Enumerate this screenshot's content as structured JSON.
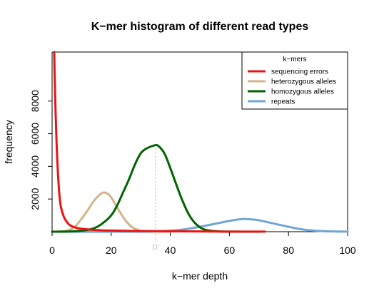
{
  "chart_data": {
    "type": "line",
    "title": "K−mer histogram of different read types",
    "xlabel": "k−mer depth",
    "ylabel": "frequency",
    "xlim": [
      0,
      100
    ],
    "ylim": [
      0,
      11000
    ],
    "x_ticks": [
      0,
      20,
      40,
      60,
      80,
      100
    ],
    "x_tick_labels": [
      "0",
      "20",
      "40",
      "60",
      "80",
      "100"
    ],
    "y_ticks": [
      2000,
      4000,
      6000,
      8000
    ],
    "y_tick_labels": [
      "2000",
      "4000",
      "6000",
      "8000"
    ],
    "grid": false,
    "legend": {
      "title": "k−mers",
      "position": "top-right"
    },
    "annotation": {
      "label": "D'",
      "x": 35,
      "line_top_y": 5300,
      "color": "#bbbbbb"
    },
    "series": [
      {
        "name": "sequencing errors",
        "color": "#ee1111",
        "x": [
          0.7,
          1,
          1.5,
          2,
          2.5,
          3,
          4,
          5,
          6,
          8,
          10,
          15,
          20,
          30,
          40,
          50,
          60,
          72
        ],
        "y": [
          11000,
          8500,
          5500,
          3500,
          2200,
          1500,
          900,
          600,
          400,
          250,
          180,
          100,
          70,
          40,
          25,
          15,
          8,
          5
        ]
      },
      {
        "name": "heterozygous alleles",
        "color": "#d2b48c",
        "x": [
          0,
          4,
          6,
          8,
          10,
          12,
          14,
          16,
          17.5,
          19,
          20,
          22,
          24,
          26,
          28,
          30,
          33,
          36,
          40
        ],
        "y": [
          0,
          30,
          120,
          350,
          800,
          1300,
          1850,
          2250,
          2400,
          2300,
          2100,
          1500,
          900,
          450,
          180,
          60,
          20,
          5,
          0
        ]
      },
      {
        "name": "homozygous alleles",
        "color": "#006400",
        "x": [
          0,
          5,
          10,
          14,
          17,
          20,
          22,
          24,
          26,
          28,
          30,
          32,
          34,
          35,
          36,
          38,
          40,
          42,
          44,
          46,
          48,
          50,
          52,
          56,
          60,
          70
        ],
        "y": [
          0,
          10,
          60,
          200,
          500,
          1000,
          1600,
          2400,
          3200,
          4100,
          4800,
          5100,
          5250,
          5300,
          5250,
          4800,
          3900,
          2900,
          1950,
          1150,
          600,
          270,
          110,
          20,
          5,
          0
        ]
      },
      {
        "name": "repeats",
        "color": "#6fa6d6",
        "x": [
          0,
          30,
          40,
          45,
          50,
          55,
          60,
          63,
          65,
          67,
          70,
          75,
          80,
          85,
          90,
          95,
          100
        ],
        "y": [
          0,
          0,
          60,
          150,
          300,
          480,
          660,
          750,
          780,
          760,
          700,
          500,
          300,
          130,
          50,
          15,
          5
        ]
      }
    ]
  }
}
